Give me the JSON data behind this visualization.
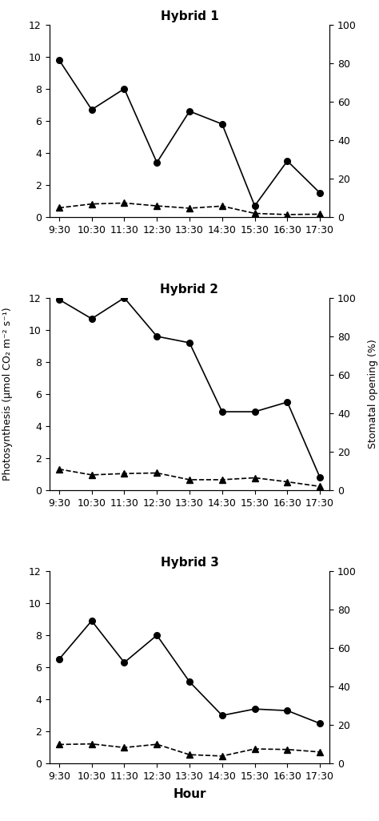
{
  "x_ticks": [
    "9:30",
    "10:30",
    "11:30",
    "12:30",
    "13:30",
    "14:30",
    "15:30",
    "16:30",
    "17:30"
  ],
  "x_values": [
    0,
    1,
    2,
    3,
    4,
    5,
    6,
    7,
    8
  ],
  "hybrid1": {
    "title": "Hybrid 1",
    "photosynthesis": [
      9.8,
      6.7,
      8.0,
      3.4,
      6.6,
      5.8,
      0.7,
      3.5,
      1.5
    ],
    "stomatal": [
      4.8,
      6.8,
      7.3,
      5.8,
      4.6,
      5.7,
      1.9,
      1.3,
      1.5
    ]
  },
  "hybrid2": {
    "title": "Hybrid 2",
    "photosynthesis": [
      11.9,
      10.7,
      12.0,
      9.6,
      9.2,
      4.9,
      4.9,
      5.5,
      0.8
    ],
    "stomatal": [
      11.0,
      8.0,
      8.7,
      9.0,
      5.5,
      5.5,
      6.5,
      4.4,
      2.0
    ]
  },
  "hybrid3": {
    "title": "Hybrid 3",
    "photosynthesis": [
      6.5,
      8.9,
      6.3,
      8.0,
      5.1,
      3.0,
      3.4,
      3.3,
      2.5
    ],
    "stomatal": [
      9.9,
      10.2,
      8.3,
      10.0,
      4.6,
      3.9,
      7.6,
      7.3,
      6.0
    ]
  },
  "ylabel_left": "Photosynthesis (μmol CO₂ m⁻² s⁻¹)",
  "ylabel_right": "Stomatal opening (%)",
  "xlabel": "Hour",
  "ylim_left": [
    0,
    12
  ],
  "ylim_right": [
    0,
    100
  ],
  "yticks_left": [
    0,
    2,
    4,
    6,
    8,
    10,
    12
  ],
  "yticks_right": [
    0,
    20,
    40,
    60,
    80,
    100
  ]
}
